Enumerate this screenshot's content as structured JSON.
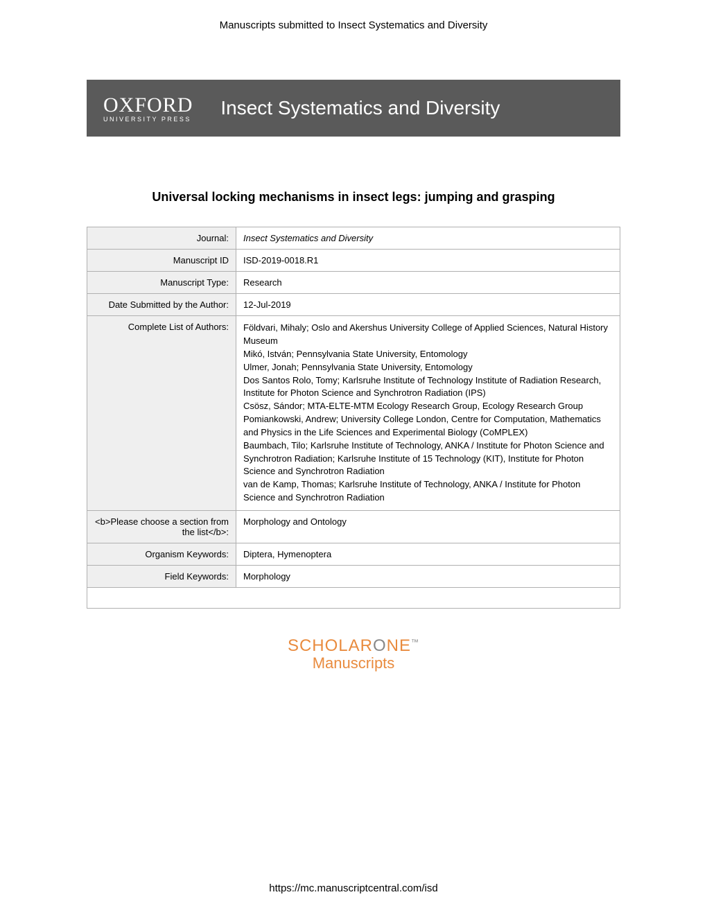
{
  "header_text": "Manuscripts submitted to Insect Systematics and Diversity",
  "banner": {
    "logo_main": "OXFORD",
    "logo_sub": "UNIVERSITY PRESS",
    "title": "Insect Systematics and Diversity"
  },
  "article_title": "Universal locking mechanisms in insect legs: jumping and grasping",
  "table": {
    "rows": [
      {
        "label": "Journal:",
        "value": "Insect Systematics and Diversity",
        "italic": true
      },
      {
        "label": "Manuscript ID",
        "value": "ISD-2019-0018.R1"
      },
      {
        "label": "Manuscript Type:",
        "value": "Research"
      },
      {
        "label": "Date Submitted by the Author:",
        "value": "12-Jul-2019"
      },
      {
        "label": "Complete List of Authors:",
        "value": "Földvari, Mihaly; Oslo and Akershus University College of Applied Sciences, Natural History Museum\nMikó, István; Pennsylvania State University, Entomology\nUlmer, Jonah; Pennsylvania State University, Entomology\nDos Santos Rolo, Tomy; Karlsruhe Institute of Technology Institute of Radiation Research, Institute for Photon Science and Synchrotron Radiation (IPS)\nCsösz, Sándor; MTA-ELTE-MTM Ecology Research Group, Ecology Research Group\nPomiankowski, Andrew; University College London, Centre for Computation, Mathematics and Physics in the Life Sciences and Experimental Biology (CoMPLEX)\nBaumbach, Tilo; Karlsruhe Institute of Technology, ANKA / Institute for Photon Science and Synchrotron Radiation; Karlsruhe Institute of 15 Technology (KIT), Institute for Photon Science and Synchrotron Radiation\nvan de Kamp, Thomas; Karlsruhe Institute of Technology, ANKA / Institute for Photon Science and Synchrotron Radiation",
        "multiline": true
      },
      {
        "label": "<b>Please choose a section from the list</b>:",
        "value": "Morphology and Ontology"
      },
      {
        "label": "Organism Keywords:",
        "value": "Diptera, Hymenoptera"
      },
      {
        "label": "Field Keywords:",
        "value": "Morphology"
      }
    ]
  },
  "scholarone": {
    "main_part1": "SCHOLAR",
    "main_part2": "O",
    "main_part3": "NE",
    "tm": "™",
    "sub": "Manuscripts"
  },
  "footer_url": "https://mc.manuscriptcentral.com/isd",
  "colors": {
    "banner_bg": "#5a5a5a",
    "label_bg": "#efefef",
    "border": "#b0b0b0",
    "scholarone_orange": "#e98b3e",
    "scholarone_grey": "#888888"
  }
}
